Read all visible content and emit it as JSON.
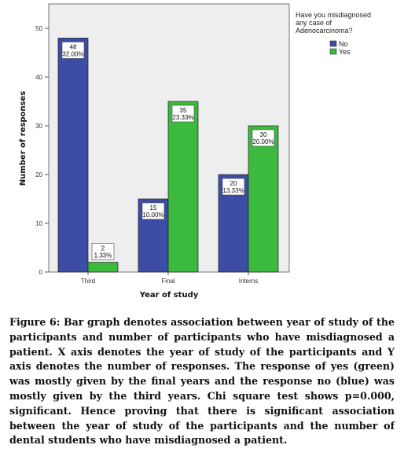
{
  "chart_data": {
    "type": "bar",
    "categories": [
      "Third",
      "Final",
      "Interns"
    ],
    "series": [
      {
        "name": "No",
        "values": [
          48,
          15,
          20
        ],
        "percent_labels": [
          "32.00%",
          "10.00%",
          "13.33%"
        ],
        "color": "#3d4da5"
      },
      {
        "name": "Yes",
        "values": [
          2,
          35,
          30
        ],
        "percent_labels": [
          "1.33%",
          "23.33%",
          "20.00%"
        ],
        "color": "#3cba3f"
      }
    ],
    "xlabel": "Year of study",
    "ylabel": "Number of responses",
    "ylim": [
      0,
      55
    ],
    "yticks": [
      0,
      10,
      20,
      30,
      40,
      50
    ],
    "legend_title": "Have you misdiagnosed any case of Adenocarcinoma?",
    "legend_position": "right",
    "grid": false,
    "plot_background": "#eeeeee"
  },
  "caption": "Figure 6: Bar graph denotes association between year of study of the participants and number of participants who have misdiagnosed a patient. X axis denotes the year of study of the participants and Y axis denotes the number of responses. The response of yes (green) was mostly given by the final years and the response no (blue) was mostly given by the third years. Chi square test shows p=0.000, significant. Hence proving that there is significant association between the year of study of the participants and the number of dental students who have misdiagnosed a patient."
}
